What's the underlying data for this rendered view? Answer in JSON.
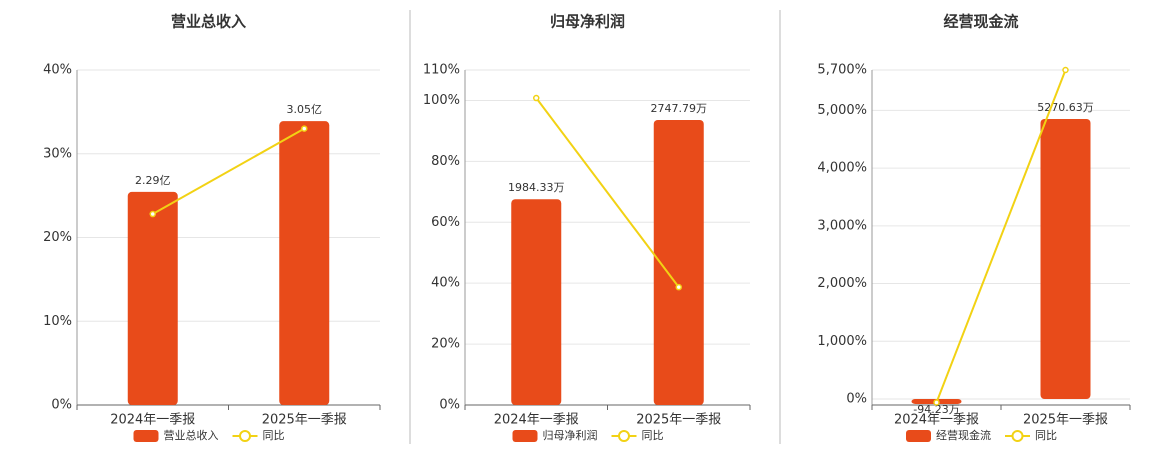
{
  "chart_data": [
    {
      "type": "bar_line",
      "title": "营业总收入",
      "categories": [
        "2024年一季报",
        "2025年一季报"
      ],
      "series": [
        {
          "name": "营业总收入",
          "type": "bar",
          "axis": "y2",
          "color": "#e84b1a",
          "values": [
            2.29,
            3.05
          ],
          "value_labels": [
            "2.29亿",
            "3.05亿"
          ]
        },
        {
          "name": "同比",
          "type": "line",
          "color": "#f2d214",
          "values": [
            22.8,
            33.0
          ]
        }
      ],
      "ylim": [
        0,
        40
      ],
      "yticks": [
        {
          "value": 0,
          "label": "0%"
        },
        {
          "value": 10,
          "label": "10%"
        },
        {
          "value": 20,
          "label": "20%"
        },
        {
          "value": 30,
          "label": "30%"
        },
        {
          "value": 40,
          "label": "40%"
        }
      ],
      "y2lim": [
        0,
        3.6
      ],
      "grid": true
    },
    {
      "type": "bar_line",
      "title": "归母净利润",
      "categories": [
        "2024年一季报",
        "2025年一季报"
      ],
      "series": [
        {
          "name": "归母净利润",
          "type": "bar",
          "axis": "y2",
          "color": "#e84b1a",
          "values": [
            1984.33,
            2747.79
          ],
          "value_labels": [
            "1984.33万",
            "2747.79万"
          ]
        },
        {
          "name": "同比",
          "type": "line",
          "color": "#f2d214",
          "values": [
            100.8,
            38.7
          ]
        }
      ],
      "ylim": [
        0,
        110
      ],
      "yticks": [
        {
          "value": 0,
          "label": "0%"
        },
        {
          "value": 20,
          "label": "20%"
        },
        {
          "value": 40,
          "label": "40%"
        },
        {
          "value": 60,
          "label": "60%"
        },
        {
          "value": 80,
          "label": "80%"
        },
        {
          "value": 100,
          "label": "100%"
        },
        {
          "value": 110,
          "label": "110%"
        }
      ],
      "y2lim": [
        0,
        3230
      ],
      "grid": true
    },
    {
      "type": "bar_line",
      "title": "经营现金流",
      "categories": [
        "2024年一季报",
        "2025年一季报"
      ],
      "series": [
        {
          "name": "经营现金流",
          "type": "bar",
          "axis": "y2",
          "color": "#e84b1a",
          "values": [
            -94.23,
            5270.63
          ],
          "value_labels": [
            "-94.23万",
            "5270.63万"
          ]
        },
        {
          "name": "同比",
          "type": "line",
          "color": "#f2d214",
          "values": [
            -60,
            5700
          ]
        }
      ],
      "ylim": [
        -104,
        5700
      ],
      "yticks": [
        {
          "value": 0,
          "label": "0%"
        },
        {
          "value": 1000,
          "label": "1,000%"
        },
        {
          "value": 2000,
          "label": "2,000%"
        },
        {
          "value": 3000,
          "label": "3,000%"
        },
        {
          "value": 4000,
          "label": "4,000%"
        },
        {
          "value": 5000,
          "label": "5,000%"
        },
        {
          "value": 5700,
          "label": "5,700%"
        }
      ],
      "y2lim": [
        -113,
        6193
      ],
      "grid": true
    }
  ]
}
